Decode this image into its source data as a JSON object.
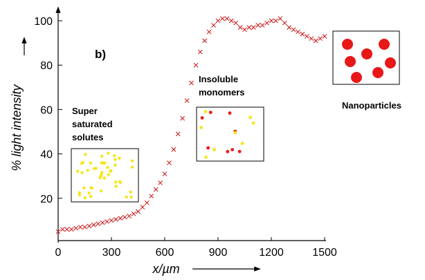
{
  "chart_data": {
    "type": "scatter",
    "annotation": "b)",
    "x_label": "x/µm",
    "y_label": "% light intensity",
    "inset_labels": [
      [
        "Super",
        "saturated",
        "solutes"
      ],
      [
        "Insoluble",
        "monomers"
      ],
      [
        "Nanoparticles"
      ]
    ],
    "xlim": [
      0,
      1500
    ],
    "xticks": [
      0,
      300,
      600,
      900,
      1200,
      1500
    ],
    "ylim": [
      0,
      105
    ],
    "yticks": [
      20,
      40,
      60,
      80,
      100
    ],
    "x": [
      0,
      25,
      50,
      75,
      100,
      125,
      150,
      175,
      200,
      225,
      250,
      275,
      300,
      325,
      350,
      375,
      400,
      425,
      450,
      475,
      500,
      525,
      550,
      575,
      600,
      625,
      650,
      675,
      700,
      725,
      750,
      775,
      800,
      825,
      850,
      875,
      900,
      925,
      950,
      975,
      1000,
      1025,
      1050,
      1075,
      1100,
      1125,
      1150,
      1175,
      1200,
      1225,
      1250,
      1275,
      1300,
      1325,
      1350,
      1375,
      1400,
      1425,
      1450,
      1475,
      1500
    ],
    "series": [
      {
        "color": "#cc2222",
        "values": [
          5,
          6,
          6,
          6,
          6.5,
          7,
          7,
          7.5,
          8,
          8.5,
          9,
          9.5,
          10,
          10.5,
          11,
          11.5,
          12,
          13,
          14,
          16,
          18,
          21,
          24,
          27,
          31,
          36,
          42,
          49,
          56,
          64,
          72,
          80,
          86,
          91,
          95,
          98,
          100,
          101,
          101,
          100,
          99,
          97,
          96,
          97,
          97,
          98,
          98,
          99,
          100,
          100,
          101,
          99,
          97,
          96,
          95,
          94,
          93,
          92,
          91,
          92,
          93
        ]
      }
    ]
  }
}
